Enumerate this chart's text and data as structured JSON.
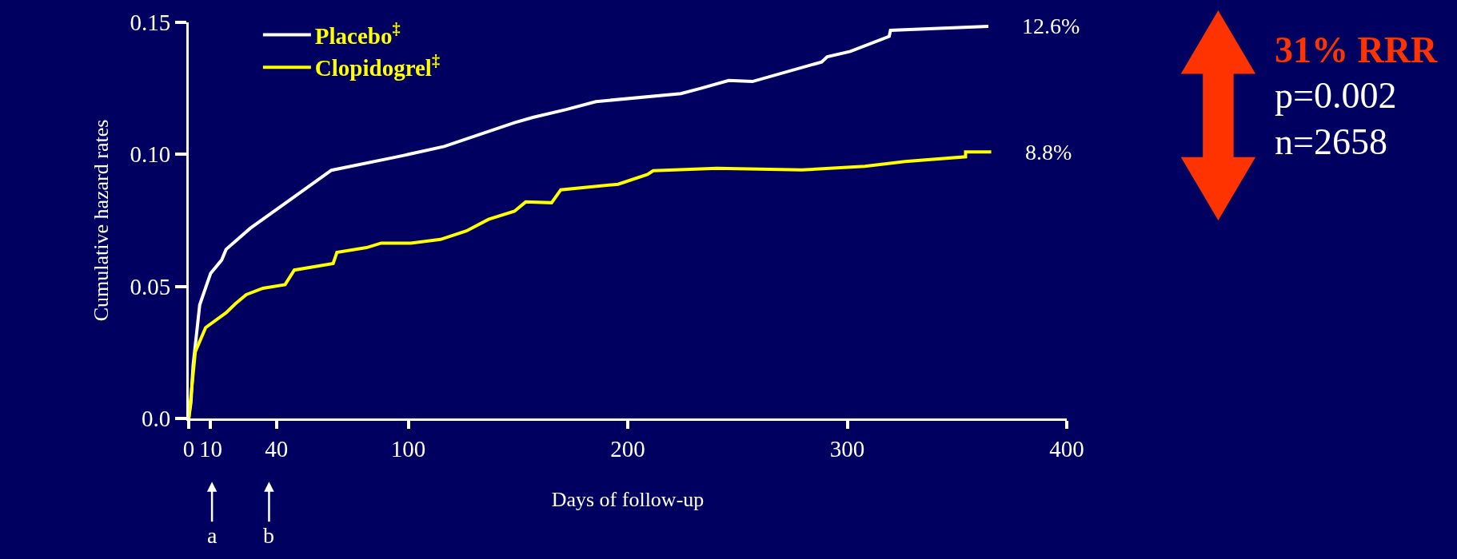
{
  "chart_data": {
    "type": "line",
    "xlabel": "Days of follow-up",
    "ylabel": "Cumulative hazard rates",
    "xlim": [
      0,
      400
    ],
    "xticks": [
      0,
      10,
      40,
      100,
      200,
      300,
      400
    ],
    "ylim": [
      0,
      0.15
    ],
    "yticks": [
      {
        "value": 0,
        "label": "0.0"
      },
      0.05,
      {
        "value": 0.1,
        "label": "0.10"
      },
      0.15
    ],
    "grid": false,
    "legend": "top left",
    "marker": "none",
    "line_style": "solid",
    "series": [
      {
        "name": "Placebo$^{‡}$",
        "color": "#ffffff",
        "x": [
          0,
          1,
          2,
          5,
          10,
          15,
          17,
          28,
          65,
          94.5,
          116.4,
          148.4,
          156.8,
          172,
          185.5,
          224.2,
          233.3,
          246,
          256.8,
          288.3,
          290.9,
          301.4,
          319.1,
          319.7,
          364.3
        ],
        "values": [
          0,
          0.006,
          0.02,
          0.043,
          0.055,
          0.06,
          0.064,
          0.072,
          0.094,
          0.099,
          0.103,
          0.112,
          0.114,
          0.117,
          0.12,
          0.123,
          0.125,
          0.128,
          0.1276,
          0.135,
          0.137,
          0.139,
          0.1447,
          0.147,
          0.1485
        ]
      },
      {
        "name": "Clopidogrel$^{‡}$",
        "color": "#ffff00",
        "x": [
          0,
          3,
          7.7,
          17,
          21.2,
          26.2,
          33.8,
          43.9,
          48.1,
          65.8,
          67.5,
          81,
          87.7,
          101.2,
          114.7,
          126.5,
          136.6,
          148.4,
          153.5,
          165.3,
          169.5,
          195.6,
          209,
          211.6,
          240.6,
          279.2,
          308,
          326.3,
          353.9,
          353.9,
          365.6
        ],
        "values": [
          0,
          0.0253,
          0.0344,
          0.04,
          0.0434,
          0.0469,
          0.0493,
          0.0507,
          0.0562,
          0.0587,
          0.0629,
          0.0647,
          0.0664,
          0.0664,
          0.0678,
          0.071,
          0.0754,
          0.0785,
          0.082,
          0.0817,
          0.0866,
          0.0887,
          0.0924,
          0.0938,
          0.0947,
          0.0941,
          0.0955,
          0.0973,
          0.0991,
          0.1009,
          0.1009
        ]
      }
    ],
    "annotations": [
      "31% RRR",
      "p=0.002",
      "n=2658",
      {
        "text": "12.6%",
        "x": 364.3,
        "y": 0.1485
      },
      {
        "text": "8.8%",
        "x": 365.6,
        "y": 0.1009
      },
      "a",
      "b"
    ]
  }
}
